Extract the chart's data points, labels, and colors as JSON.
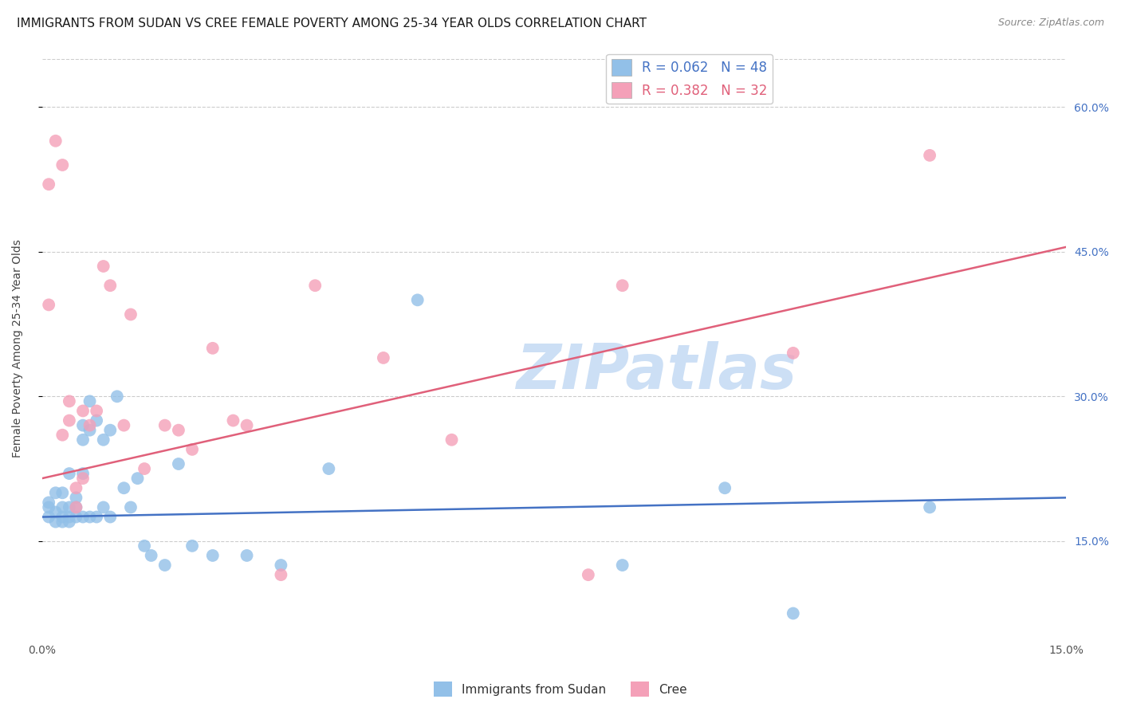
{
  "title": "IMMIGRANTS FROM SUDAN VS CREE FEMALE POVERTY AMONG 25-34 YEAR OLDS CORRELATION CHART",
  "source": "Source: ZipAtlas.com",
  "ylabel": "Female Poverty Among 25-34 Year Olds",
  "xlim": [
    0.0,
    0.15
  ],
  "ylim": [
    0.05,
    0.65
  ],
  "yticks": [
    0.15,
    0.3,
    0.45,
    0.6
  ],
  "ytick_labels": [
    "15.0%",
    "30.0%",
    "45.0%",
    "60.0%"
  ],
  "xticks": [
    0.0,
    0.03,
    0.06,
    0.09,
    0.12,
    0.15
  ],
  "xtick_labels": [
    "0.0%",
    "",
    "",
    "",
    "",
    "15.0%"
  ],
  "blue_color": "#92c0e8",
  "pink_color": "#f4a0b8",
  "blue_line_color": "#4472c4",
  "pink_line_color": "#e0607a",
  "watermark": "ZIPatlas",
  "watermark_color": "#ccdff5",
  "background_color": "#ffffff",
  "grid_color": "#cccccc",
  "title_fontsize": 11,
  "axis_label_fontsize": 10,
  "tick_fontsize": 10,
  "blue_line_x0": 0.0,
  "blue_line_y0": 0.175,
  "blue_line_x1": 0.15,
  "blue_line_y1": 0.195,
  "pink_line_x0": 0.0,
  "pink_line_y0": 0.215,
  "pink_line_x1": 0.15,
  "pink_line_y1": 0.455,
  "blue_points_x": [
    0.001,
    0.001,
    0.001,
    0.002,
    0.002,
    0.002,
    0.003,
    0.003,
    0.003,
    0.003,
    0.004,
    0.004,
    0.004,
    0.004,
    0.005,
    0.005,
    0.005,
    0.006,
    0.006,
    0.006,
    0.006,
    0.007,
    0.007,
    0.007,
    0.008,
    0.008,
    0.009,
    0.009,
    0.01,
    0.01,
    0.011,
    0.012,
    0.013,
    0.014,
    0.015,
    0.016,
    0.018,
    0.02,
    0.022,
    0.025,
    0.03,
    0.035,
    0.042,
    0.055,
    0.085,
    0.1,
    0.11,
    0.13
  ],
  "blue_points_y": [
    0.185,
    0.175,
    0.19,
    0.18,
    0.2,
    0.17,
    0.2,
    0.185,
    0.175,
    0.17,
    0.22,
    0.185,
    0.175,
    0.17,
    0.195,
    0.185,
    0.175,
    0.27,
    0.255,
    0.22,
    0.175,
    0.295,
    0.265,
    0.175,
    0.275,
    0.175,
    0.255,
    0.185,
    0.265,
    0.175,
    0.3,
    0.205,
    0.185,
    0.215,
    0.145,
    0.135,
    0.125,
    0.23,
    0.145,
    0.135,
    0.135,
    0.125,
    0.225,
    0.4,
    0.125,
    0.205,
    0.075,
    0.185
  ],
  "pink_points_x": [
    0.001,
    0.001,
    0.002,
    0.003,
    0.004,
    0.004,
    0.005,
    0.005,
    0.006,
    0.006,
    0.007,
    0.008,
    0.009,
    0.01,
    0.012,
    0.013,
    0.015,
    0.018,
    0.02,
    0.022,
    0.025,
    0.028,
    0.03,
    0.035,
    0.04,
    0.05,
    0.06,
    0.08,
    0.11,
    0.13,
    0.085,
    0.003
  ],
  "pink_points_y": [
    0.52,
    0.395,
    0.565,
    0.54,
    0.295,
    0.275,
    0.205,
    0.185,
    0.285,
    0.215,
    0.27,
    0.285,
    0.435,
    0.415,
    0.27,
    0.385,
    0.225,
    0.27,
    0.265,
    0.245,
    0.35,
    0.275,
    0.27,
    0.115,
    0.415,
    0.34,
    0.255,
    0.115,
    0.345,
    0.55,
    0.415,
    0.26
  ]
}
